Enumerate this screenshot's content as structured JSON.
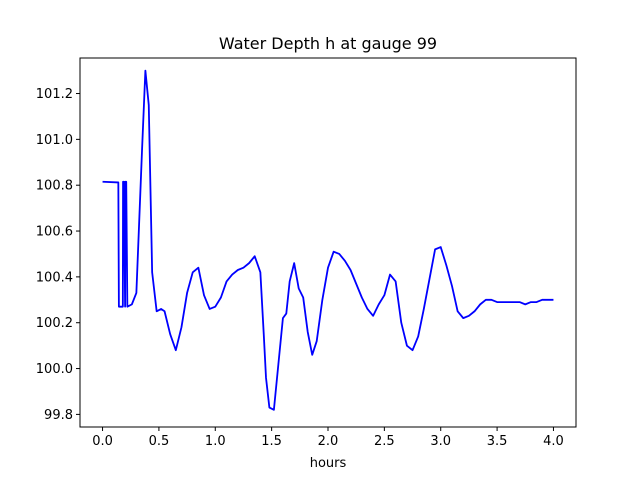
{
  "chart_data": {
    "type": "line",
    "title": "Water Depth h at gauge 99",
    "xlabel": "hours",
    "ylabel": "",
    "xlim": [
      -0.2,
      4.2
    ],
    "ylim": [
      99.745,
      101.355
    ],
    "xticks": [
      0.0,
      0.5,
      1.0,
      1.5,
      2.0,
      2.5,
      3.0,
      3.5,
      4.0
    ],
    "xtick_labels": [
      "0.0",
      "0.5",
      "1.0",
      "1.5",
      "2.0",
      "2.5",
      "3.0",
      "3.5",
      "4.0"
    ],
    "yticks": [
      99.8,
      100.0,
      100.2,
      100.4,
      100.6,
      100.8,
      101.0,
      101.2
    ],
    "ytick_labels": [
      "99.8",
      "100.0",
      "100.2",
      "100.4",
      "100.6",
      "100.8",
      "101.0",
      "101.2"
    ],
    "grid": false,
    "legend": "none",
    "series": [
      {
        "color": "#0000ff",
        "x": [
          0.0,
          0.14,
          0.145,
          0.18,
          0.182,
          0.19,
          0.2,
          0.202,
          0.21,
          0.22,
          0.26,
          0.3,
          0.35,
          0.38,
          0.41,
          0.44,
          0.48,
          0.52,
          0.55,
          0.6,
          0.65,
          0.7,
          0.75,
          0.8,
          0.85,
          0.9,
          0.95,
          1.0,
          1.05,
          1.1,
          1.15,
          1.2,
          1.25,
          1.3,
          1.35,
          1.4,
          1.43,
          1.45,
          1.48,
          1.52,
          1.56,
          1.6,
          1.63,
          1.66,
          1.7,
          1.74,
          1.78,
          1.82,
          1.86,
          1.9,
          1.95,
          2.0,
          2.05,
          2.1,
          2.15,
          2.2,
          2.25,
          2.3,
          2.35,
          2.4,
          2.45,
          2.5,
          2.55,
          2.6,
          2.65,
          2.7,
          2.75,
          2.8,
          2.85,
          2.9,
          2.95,
          3.0,
          3.05,
          3.1,
          3.15,
          3.2,
          3.25,
          3.3,
          3.35,
          3.4,
          3.45,
          3.5,
          3.55,
          3.6,
          3.65,
          3.7,
          3.75,
          3.8,
          3.85,
          3.9,
          3.95,
          3.98,
          4.0
        ],
        "y": [
          100.815,
          100.812,
          100.27,
          100.27,
          100.815,
          100.815,
          100.27,
          100.815,
          100.815,
          100.27,
          100.28,
          100.33,
          100.95,
          101.3,
          101.15,
          100.42,
          100.25,
          100.26,
          100.25,
          100.15,
          100.08,
          100.18,
          100.33,
          100.42,
          100.44,
          100.32,
          100.26,
          100.27,
          100.31,
          100.38,
          100.41,
          100.43,
          100.44,
          100.46,
          100.49,
          100.42,
          100.15,
          99.96,
          99.83,
          99.82,
          100.02,
          100.22,
          100.24,
          100.38,
          100.46,
          100.35,
          100.31,
          100.16,
          100.06,
          100.12,
          100.3,
          100.44,
          100.51,
          100.5,
          100.47,
          100.43,
          100.37,
          100.31,
          100.26,
          100.23,
          100.28,
          100.32,
          100.41,
          100.38,
          100.2,
          100.1,
          100.08,
          100.14,
          100.26,
          100.39,
          100.52,
          100.53,
          100.45,
          100.36,
          100.25,
          100.22,
          100.23,
          100.25,
          100.28,
          100.3,
          100.3,
          100.29,
          100.29,
          100.29,
          100.29,
          100.29,
          100.28,
          100.29,
          100.29,
          100.3,
          100.3,
          100.3,
          100.3
        ]
      }
    ]
  }
}
